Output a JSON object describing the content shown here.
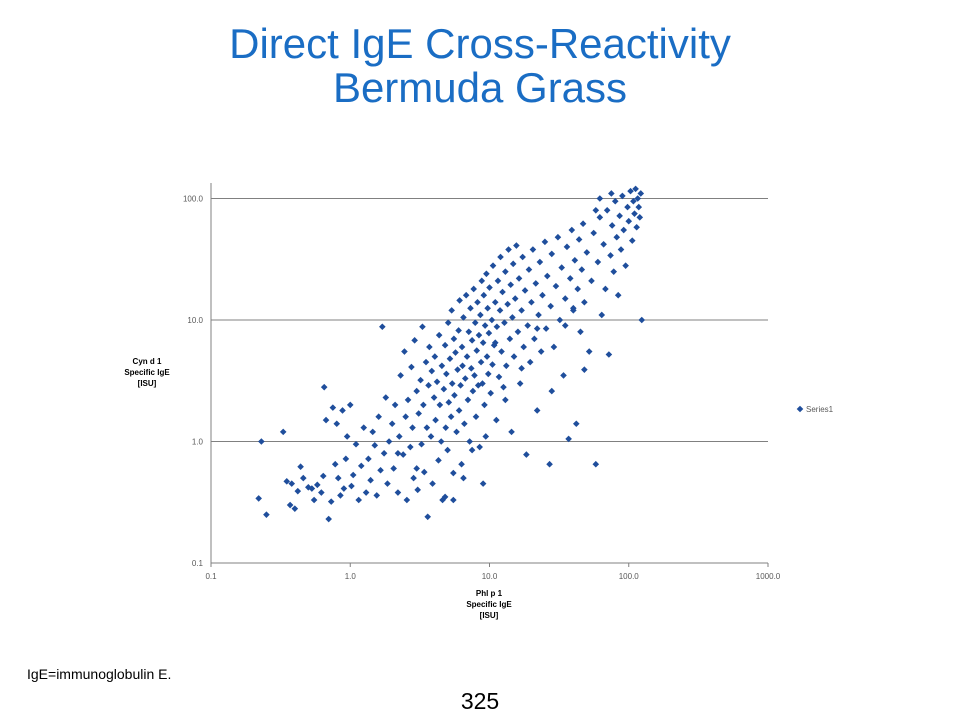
{
  "slide": {
    "title_line1": "Direct IgE Cross-Reactivity",
    "title_line2": "Bermuda Grass",
    "footnote": "IgE=immunoglobulin E.",
    "page_number": "325"
  },
  "colors": {
    "title": "#1a6dc4",
    "marker": "#1f4e9c",
    "gridline": "#808080"
  },
  "chart_data": {
    "type": "scatter",
    "title": "",
    "xlabel": [
      "Phl p 1",
      "Specific IgE",
      "[ISU]"
    ],
    "ylabel": [
      "Cyn d 1",
      "Specific IgE",
      "[ISU]"
    ],
    "x_scale": "log",
    "y_scale": "log",
    "xlim": [
      0.1,
      1000
    ],
    "ylim": [
      0.1,
      150
    ],
    "x_ticks": [
      "0.1",
      "1.0",
      "10.0",
      "100.0",
      "1000.0"
    ],
    "y_ticks": [
      "0.1",
      "1.0",
      "10.0",
      "100.0"
    ],
    "grid": "horizontal",
    "legend": "right",
    "series": [
      {
        "name": "Series1",
        "marker": "diamond",
        "points": [
          [
            0.22,
            0.34
          ],
          [
            0.25,
            0.25
          ],
          [
            0.23,
            1.0
          ],
          [
            0.33,
            1.2
          ],
          [
            0.35,
            0.47
          ],
          [
            0.37,
            0.3
          ],
          [
            0.38,
            0.45
          ],
          [
            0.4,
            0.28
          ],
          [
            0.42,
            0.39
          ],
          [
            0.44,
            0.62
          ],
          [
            0.46,
            0.5
          ],
          [
            0.5,
            0.42
          ],
          [
            0.53,
            0.41
          ],
          [
            0.55,
            0.33
          ],
          [
            0.58,
            0.44
          ],
          [
            0.62,
            0.38
          ],
          [
            0.64,
            0.52
          ],
          [
            0.65,
            2.8
          ],
          [
            0.67,
            1.5
          ],
          [
            0.7,
            0.23
          ],
          [
            0.73,
            0.32
          ],
          [
            0.75,
            1.9
          ],
          [
            0.78,
            0.65
          ],
          [
            0.8,
            1.4
          ],
          [
            0.82,
            0.5
          ],
          [
            0.85,
            0.36
          ],
          [
            0.88,
            1.8
          ],
          [
            0.9,
            0.41
          ],
          [
            0.93,
            0.72
          ],
          [
            0.95,
            1.1
          ],
          [
            1.0,
            2.0
          ],
          [
            1.02,
            0.43
          ],
          [
            1.05,
            0.53
          ],
          [
            1.1,
            0.95
          ],
          [
            1.15,
            0.33
          ],
          [
            1.2,
            0.63
          ],
          [
            1.25,
            1.3
          ],
          [
            1.3,
            0.38
          ],
          [
            1.35,
            0.72
          ],
          [
            1.4,
            0.48
          ],
          [
            1.45,
            1.2
          ],
          [
            1.5,
            0.93
          ],
          [
            1.55,
            0.36
          ],
          [
            1.6,
            1.6
          ],
          [
            1.65,
            0.58
          ],
          [
            1.7,
            8.8
          ],
          [
            1.75,
            0.8
          ],
          [
            1.8,
            2.3
          ],
          [
            1.85,
            0.45
          ],
          [
            1.9,
            1.0
          ],
          [
            2.0,
            1.4
          ],
          [
            2.05,
            0.6
          ],
          [
            2.1,
            2.0
          ],
          [
            2.2,
            0.38
          ],
          [
            2.25,
            1.1
          ],
          [
            2.3,
            3.5
          ],
          [
            2.4,
            0.78
          ],
          [
            2.45,
            5.5
          ],
          [
            2.5,
            1.6
          ],
          [
            2.55,
            0.33
          ],
          [
            2.6,
            2.2
          ],
          [
            2.7,
            0.9
          ],
          [
            2.75,
            4.1
          ],
          [
            2.8,
            1.3
          ],
          [
            2.85,
            0.5
          ],
          [
            2.9,
            6.8
          ],
          [
            3.0,
            2.6
          ],
          [
            3.05,
            0.4
          ],
          [
            3.1,
            1.7
          ],
          [
            3.2,
            3.2
          ],
          [
            3.25,
            0.95
          ],
          [
            3.3,
            8.8
          ],
          [
            3.35,
            2.0
          ],
          [
            3.4,
            0.56
          ],
          [
            3.5,
            4.5
          ],
          [
            3.55,
            1.3
          ],
          [
            3.6,
            0.24
          ],
          [
            3.65,
            2.9
          ],
          [
            3.7,
            6.0
          ],
          [
            3.8,
            1.1
          ],
          [
            3.85,
            3.8
          ],
          [
            3.9,
            0.45
          ],
          [
            4.0,
            2.3
          ],
          [
            4.05,
            5.0
          ],
          [
            4.1,
            1.5
          ],
          [
            4.2,
            3.1
          ],
          [
            4.3,
            0.7
          ],
          [
            4.35,
            7.5
          ],
          [
            4.4,
            2.0
          ],
          [
            4.5,
            1.0
          ],
          [
            4.55,
            4.2
          ],
          [
            4.6,
            0.33
          ],
          [
            4.7,
            2.7
          ],
          [
            4.8,
            6.2
          ],
          [
            4.85,
            1.3
          ],
          [
            4.9,
            3.6
          ],
          [
            5.0,
            0.85
          ],
          [
            5.05,
            9.5
          ],
          [
            5.1,
            2.1
          ],
          [
            5.2,
            4.8
          ],
          [
            5.3,
            1.6
          ],
          [
            5.35,
            12.0
          ],
          [
            5.4,
            3.0
          ],
          [
            5.5,
            0.55
          ],
          [
            5.55,
            7.0
          ],
          [
            5.6,
            2.4
          ],
          [
            5.7,
            5.4
          ],
          [
            5.8,
            1.2
          ],
          [
            5.9,
            3.9
          ],
          [
            6.0,
            8.2
          ],
          [
            6.05,
            1.8
          ],
          [
            6.1,
            14.5
          ],
          [
            6.2,
            2.9
          ],
          [
            6.3,
            0.65
          ],
          [
            6.35,
            6.0
          ],
          [
            6.4,
            4.2
          ],
          [
            6.5,
            10.5
          ],
          [
            6.6,
            1.4
          ],
          [
            6.7,
            3.3
          ],
          [
            6.8,
            16.0
          ],
          [
            6.9,
            5.0
          ],
          [
            7.0,
            2.2
          ],
          [
            7.1,
            8.0
          ],
          [
            7.2,
            1.0
          ],
          [
            7.3,
            12.5
          ],
          [
            7.4,
            4.0
          ],
          [
            7.5,
            6.8
          ],
          [
            7.6,
            2.6
          ],
          [
            7.7,
            18.0
          ],
          [
            7.8,
            3.5
          ],
          [
            7.9,
            9.5
          ],
          [
            8.0,
            1.6
          ],
          [
            8.1,
            5.6
          ],
          [
            8.2,
            14.0
          ],
          [
            8.3,
            2.9
          ],
          [
            8.4,
            7.5
          ],
          [
            8.5,
            0.9
          ],
          [
            8.6,
            11.0
          ],
          [
            8.7,
            4.5
          ],
          [
            8.8,
            21.0
          ],
          [
            8.9,
            3.0
          ],
          [
            9.0,
            6.5
          ],
          [
            9.1,
            16.0
          ],
          [
            9.2,
            2.0
          ],
          [
            9.3,
            9.0
          ],
          [
            9.4,
            1.1
          ],
          [
            9.5,
            24.0
          ],
          [
            9.6,
            5.0
          ],
          [
            9.7,
            12.5
          ],
          [
            9.8,
            3.6
          ],
          [
            9.9,
            7.8
          ],
          [
            10.0,
            18.5
          ],
          [
            10.2,
            2.5
          ],
          [
            10.4,
            10.0
          ],
          [
            10.5,
            4.3
          ],
          [
            10.6,
            28.0
          ],
          [
            10.8,
            6.2
          ],
          [
            11.0,
            14.0
          ],
          [
            11.2,
            1.5
          ],
          [
            11.3,
            8.8
          ],
          [
            11.5,
            21.0
          ],
          [
            11.7,
            3.4
          ],
          [
            11.9,
            12.0
          ],
          [
            12.0,
            33.0
          ],
          [
            12.2,
            5.5
          ],
          [
            12.4,
            17.0
          ],
          [
            12.6,
            2.8
          ],
          [
            12.8,
            9.5
          ],
          [
            13.0,
            25.0
          ],
          [
            13.2,
            4.2
          ],
          [
            13.5,
            13.5
          ],
          [
            13.7,
            38.0
          ],
          [
            14.0,
            7.0
          ],
          [
            14.2,
            19.5
          ],
          [
            14.4,
            1.2
          ],
          [
            14.6,
            10.5
          ],
          [
            14.8,
            29.0
          ],
          [
            15.0,
            5.0
          ],
          [
            15.3,
            15.0
          ],
          [
            15.6,
            41.0
          ],
          [
            16.0,
            8.0
          ],
          [
            16.3,
            22.0
          ],
          [
            16.6,
            3.0
          ],
          [
            17.0,
            12.0
          ],
          [
            17.3,
            33.0
          ],
          [
            17.6,
            6.0
          ],
          [
            18.0,
            17.5
          ],
          [
            18.4,
            0.78
          ],
          [
            18.8,
            9.0
          ],
          [
            19.2,
            26.0
          ],
          [
            19.6,
            4.5
          ],
          [
            20.0,
            14.0
          ],
          [
            20.5,
            38.0
          ],
          [
            21.0,
            7.0
          ],
          [
            21.5,
            20.0
          ],
          [
            22.0,
            1.8
          ],
          [
            22.5,
            11.0
          ],
          [
            23.0,
            30.0
          ],
          [
            23.5,
            5.5
          ],
          [
            24.0,
            16.0
          ],
          [
            25.0,
            44.0
          ],
          [
            25.5,
            8.5
          ],
          [
            26.0,
            23.0
          ],
          [
            27.0,
            0.65
          ],
          [
            27.5,
            13.0
          ],
          [
            28.0,
            35.0
          ],
          [
            29.0,
            6.0
          ],
          [
            30.0,
            19.0
          ],
          [
            31.0,
            48.0
          ],
          [
            32.0,
            10.0
          ],
          [
            33.0,
            27.0
          ],
          [
            34.0,
            3.5
          ],
          [
            35.0,
            15.0
          ],
          [
            36.0,
            40.0
          ],
          [
            37.0,
            1.05
          ],
          [
            38.0,
            22.0
          ],
          [
            39.0,
            55.0
          ],
          [
            40.0,
            12.0
          ],
          [
            41.0,
            31.0
          ],
          [
            42.0,
            1.4
          ],
          [
            43.0,
            18.0
          ],
          [
            44.0,
            46.0
          ],
          [
            45.0,
            8.0
          ],
          [
            46.0,
            26.0
          ],
          [
            47.0,
            62.0
          ],
          [
            48.0,
            14.0
          ],
          [
            50.0,
            36.0
          ],
          [
            52.0,
            5.5
          ],
          [
            54.0,
            21.0
          ],
          [
            56.0,
            52.0
          ],
          [
            58.0,
            0.65
          ],
          [
            60.0,
            30.0
          ],
          [
            62.0,
            70.0
          ],
          [
            64.0,
            11.0
          ],
          [
            66.0,
            42.0
          ],
          [
            68.0,
            18.0
          ],
          [
            70.0,
            80.0
          ],
          [
            72.0,
            5.2
          ],
          [
            74.0,
            34.0
          ],
          [
            76.0,
            60.0
          ],
          [
            78.0,
            25.0
          ],
          [
            80.0,
            95.0
          ],
          [
            82.0,
            48.0
          ],
          [
            84.0,
            16.0
          ],
          [
            86.0,
            72.0
          ],
          [
            88.0,
            38.0
          ],
          [
            90.0,
            105.0
          ],
          [
            92.0,
            55.0
          ],
          [
            95.0,
            28.0
          ],
          [
            98.0,
            85.0
          ],
          [
            100.0,
            65.0
          ],
          [
            103.0,
            115.0
          ],
          [
            106.0,
            45.0
          ],
          [
            108.0,
            95.0
          ],
          [
            110.0,
            75.0
          ],
          [
            112.0,
            120.0
          ],
          [
            114.0,
            58.0
          ],
          [
            116.0,
            100.0
          ],
          [
            118.0,
            85.0
          ],
          [
            120.0,
            70.0
          ],
          [
            122.0,
            110.0
          ],
          [
            124.0,
            10.0
          ],
          [
            58.0,
            80.0
          ],
          [
            62.0,
            100.0
          ],
          [
            75.0,
            110.0
          ],
          [
            40.0,
            12.5
          ],
          [
            48.0,
            3.9
          ],
          [
            35.0,
            9.0
          ],
          [
            28.0,
            2.6
          ],
          [
            22.0,
            8.5
          ],
          [
            17.0,
            4.0
          ],
          [
            13.0,
            2.2
          ],
          [
            11.0,
            6.5
          ],
          [
            9.0,
            0.45
          ],
          [
            7.5,
            0.85
          ],
          [
            6.5,
            0.5
          ],
          [
            5.5,
            0.33
          ],
          [
            4.8,
            0.35
          ],
          [
            3.0,
            0.6
          ],
          [
            2.2,
            0.8
          ]
        ]
      }
    ]
  }
}
